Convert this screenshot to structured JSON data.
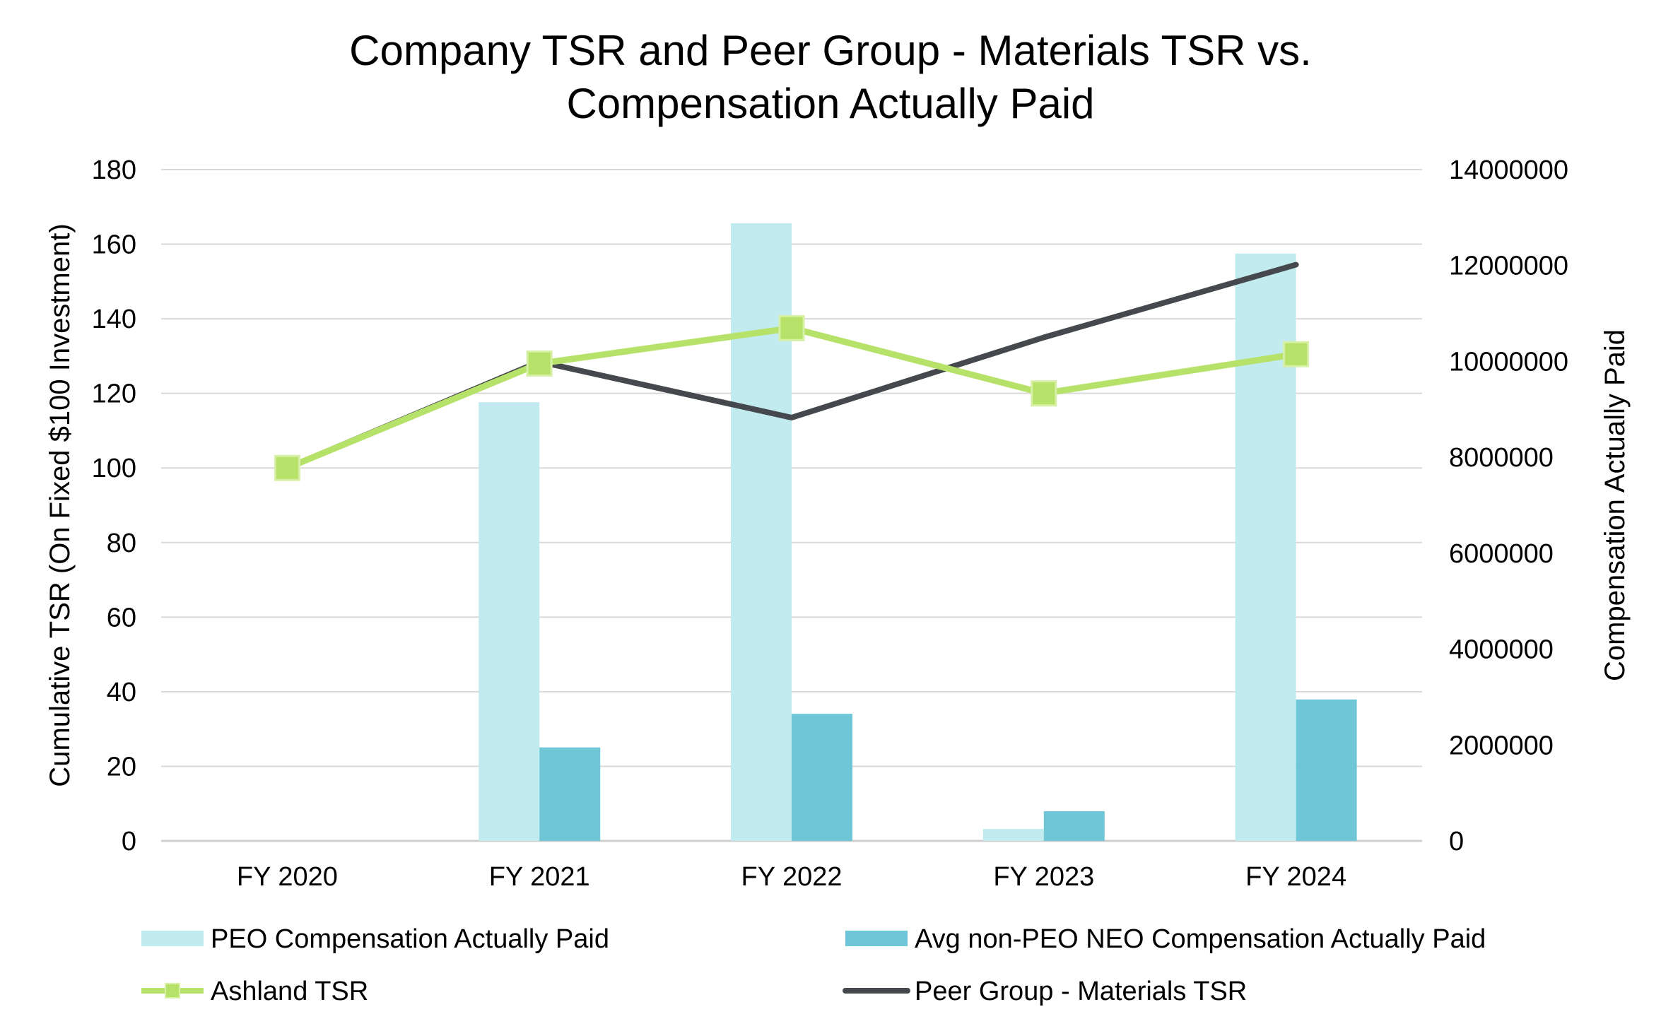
{
  "chart_data": {
    "type": "bar+line",
    "title_lines": [
      "Company TSR and Peer Group - Materials TSR vs.",
      "Compensation Actually Paid"
    ],
    "categories": [
      "FY 2020",
      "FY 2021",
      "FY 2022",
      "FY 2023",
      "FY 2024"
    ],
    "left_axis": {
      "label": "Cumulative TSR (On Fixed $100 Investment)",
      "range": [
        0,
        180
      ],
      "ticks": [
        0,
        20,
        40,
        60,
        80,
        100,
        120,
        140,
        160,
        180
      ]
    },
    "right_axis": {
      "label": "Compensation Actually Paid",
      "range": [
        0,
        14000000
      ],
      "ticks": [
        0,
        2000000,
        4000000,
        6000000,
        8000000,
        10000000,
        12000000,
        14000000
      ]
    },
    "bar_series": [
      {
        "name": "PEO Compensation Actually Paid",
        "axis": "right",
        "color": "#c2ebf0",
        "values": [
          0,
          9150000,
          12880000,
          250000,
          12250000
        ]
      },
      {
        "name": "Avg non-PEO NEO Compensation Actually Paid",
        "axis": "right",
        "color": "#6ec6d6",
        "values": [
          0,
          1950000,
          2650000,
          620000,
          2950000
        ]
      }
    ],
    "line_series": [
      {
        "name": "Ashland TSR",
        "axis": "left",
        "color": "#b7e26a",
        "marker": "square",
        "values": [
          100,
          128,
          137.5,
          120,
          130.5
        ]
      },
      {
        "name": "Peer Group - Materials TSR",
        "axis": "left",
        "color": "#45484c",
        "marker": "none",
        "values": [
          100,
          128.5,
          113.5,
          135,
          154.5
        ]
      }
    ],
    "gridlines": true,
    "legend_position": "bottom"
  }
}
